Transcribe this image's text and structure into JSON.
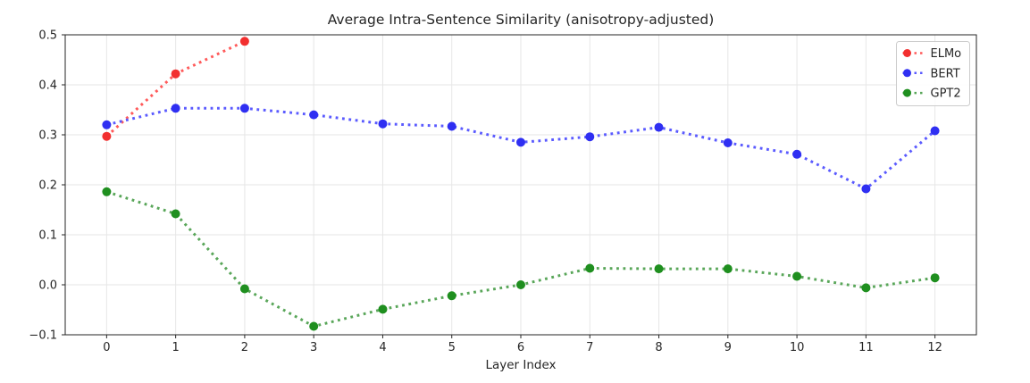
{
  "figure": {
    "background": "#ffffff",
    "text_color": "#262626",
    "grid_color": "#e6e6e6",
    "spine_color": "#262626",
    "legend_border_color": "#cccccc"
  },
  "chart_data": {
    "type": "line",
    "title": "Average Intra-Sentence Similarity (anisotropy-adjusted)",
    "xlabel": "Layer Index",
    "ylabel": "",
    "line_style": "dotted",
    "marker": "circle",
    "grid": true,
    "xlim": [
      -0.6,
      12.6
    ],
    "ylim": [
      -0.1,
      0.5
    ],
    "x_ticks": [
      0,
      1,
      2,
      3,
      4,
      5,
      6,
      7,
      8,
      9,
      10,
      11,
      12
    ],
    "x_tick_labels": [
      "0",
      "1",
      "2",
      "3",
      "4",
      "5",
      "6",
      "7",
      "8",
      "9",
      "10",
      "11",
      "12"
    ],
    "y_ticks": [
      -0.1,
      0.0,
      0.1,
      0.2,
      0.3,
      0.4,
      0.5
    ],
    "y_tick_labels": [
      "−0.1",
      "0.0",
      "0.1",
      "0.2",
      "0.3",
      "0.4",
      "0.5"
    ],
    "legend": {
      "position": "upper right",
      "entries": [
        "ELMo",
        "BERT",
        "GPT2"
      ]
    },
    "series": [
      {
        "name": "ELMo",
        "line_color": "#ff5a5a",
        "marker_color": "#f22f2f",
        "x": [
          0,
          1,
          2
        ],
        "y": [
          0.297,
          0.422,
          0.487
        ]
      },
      {
        "name": "BERT",
        "line_color": "#5a5aff",
        "marker_color": "#2f2ff2",
        "x": [
          0,
          1,
          2,
          3,
          4,
          5,
          6,
          7,
          8,
          9,
          10,
          11,
          12
        ],
        "y": [
          0.32,
          0.353,
          0.353,
          0.34,
          0.322,
          0.317,
          0.285,
          0.296,
          0.315,
          0.284,
          0.261,
          0.192,
          0.308
        ]
      },
      {
        "name": "GPT2",
        "line_color": "#59a659",
        "marker_color": "#1f8f1f",
        "x": [
          0,
          1,
          2,
          3,
          4,
          5,
          6,
          7,
          8,
          9,
          10,
          11,
          12
        ],
        "y": [
          0.186,
          0.142,
          -0.008,
          -0.083,
          -0.049,
          -0.022,
          0.0,
          0.033,
          0.032,
          0.032,
          0.017,
          -0.006,
          0.014
        ]
      }
    ]
  }
}
